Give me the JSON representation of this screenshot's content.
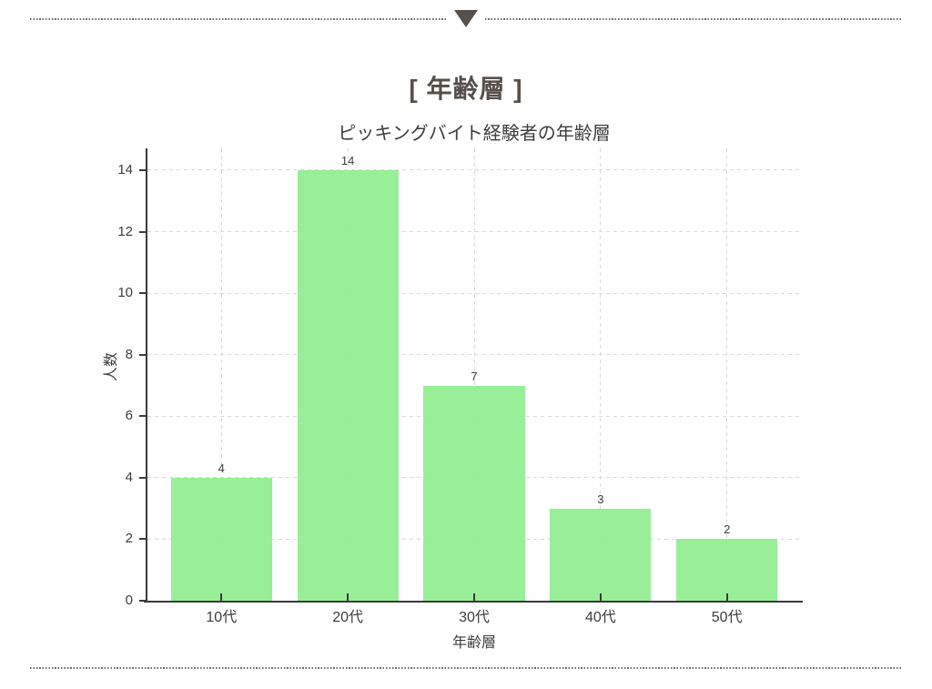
{
  "page": {
    "header_title": "[ 年齢層 ]"
  },
  "chart_data": {
    "type": "bar",
    "title": "ピッキングバイト経験者の年齢層",
    "xlabel": "年齢層",
    "ylabel": "人数",
    "categories": [
      "10代",
      "20代",
      "30代",
      "40代",
      "50代"
    ],
    "values": [
      4,
      14,
      7,
      3,
      2
    ],
    "yticks": [
      0,
      2,
      4,
      6,
      8,
      10,
      12,
      14
    ],
    "ylim": [
      0,
      14.71
    ],
    "grid": true,
    "legend": false,
    "value_labels": [
      4,
      14,
      7,
      3,
      2
    ]
  },
  "colors": {
    "bar": "#90ee90",
    "axis": "#3a3a3a",
    "grid": "#d9d9d9",
    "text": "#3d3d3d",
    "accent": "#57504a",
    "dots": "#6f6969"
  }
}
